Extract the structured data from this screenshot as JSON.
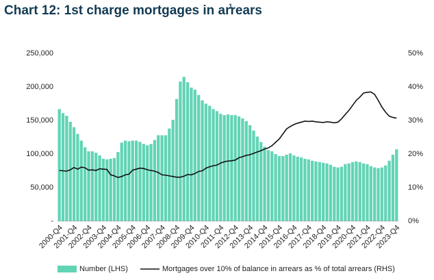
{
  "chart_data": {
    "type": "bar_line",
    "title": "Chart 12: 1st charge mortgages in arrears",
    "title_superscript": "1",
    "categories": [
      "2000-Q4",
      null,
      null,
      null,
      "2001-Q4",
      null,
      null,
      null,
      "2002-Q4",
      null,
      null,
      null,
      "2003-Q4",
      null,
      null,
      null,
      "2004-Q4",
      null,
      null,
      null,
      "2005-Q4",
      null,
      null,
      null,
      "2006-Q4",
      null,
      null,
      null,
      "2007-Q4",
      null,
      null,
      null,
      "2008-Q4",
      null,
      null,
      null,
      "2009-Q4",
      null,
      null,
      null,
      "2010-Q4",
      null,
      null,
      null,
      "2011-Q4",
      null,
      null,
      null,
      "2012-Q4",
      null,
      null,
      null,
      "2013-Q4",
      null,
      null,
      null,
      "2014-Q4",
      null,
      null,
      null,
      "2015-Q4",
      null,
      null,
      null,
      "2016-Q4",
      null,
      null,
      null,
      "2017-Q4",
      null,
      null,
      null,
      "2018-Q4",
      null,
      null,
      null,
      "2019-Q4",
      null,
      null,
      null,
      "2020-Q4",
      null,
      null,
      null,
      "2021-Q4",
      null,
      null,
      null,
      "2022-Q4",
      null,
      null,
      null,
      "2023-Q4"
    ],
    "series": [
      {
        "name": "Number (LHS)",
        "color": "#62d4b6",
        "kind": "bar",
        "axis": "y",
        "values": [
          167000,
          161000,
          157000,
          148000,
          140000,
          130000,
          120000,
          110000,
          104000,
          104000,
          102000,
          98000,
          93000,
          92000,
          93000,
          94000,
          103000,
          117000,
          120000,
          119000,
          120000,
          120000,
          118000,
          115000,
          113000,
          115000,
          121000,
          128000,
          128000,
          128000,
          138000,
          151000,
          182000,
          208000,
          215000,
          207000,
          199000,
          196000,
          188000,
          180000,
          175000,
          172000,
          167000,
          164000,
          160000,
          158000,
          159000,
          158000,
          158000,
          156000,
          153000,
          149000,
          143000,
          135000,
          126000,
          118000,
          111000,
          106000,
          104000,
          100000,
          97000,
          97000,
          99000,
          101000,
          98000,
          96000,
          95000,
          93000,
          92000,
          90000,
          89000,
          88000,
          87000,
          86000,
          84000,
          81000,
          80000,
          81000,
          85000,
          86000,
          88000,
          89000,
          88000,
          86000,
          85000,
          82000,
          80000,
          79000,
          80000,
          83000,
          90000,
          99000,
          107000
        ]
      },
      {
        "name": "Mortgages over 10% of balance in arrears as % of total arrears (RHS)",
        "color": "#111111",
        "kind": "line",
        "axis": "y2",
        "values": [
          15.1,
          15.0,
          14.9,
          15.3,
          16.0,
          15.5,
          16.1,
          15.9,
          15.2,
          15.3,
          15.1,
          15.6,
          15.5,
          15.4,
          13.8,
          13.5,
          13.0,
          13.3,
          13.8,
          14.0,
          15.2,
          15.5,
          15.8,
          15.7,
          15.3,
          15.1,
          14.9,
          14.5,
          13.8,
          13.7,
          13.5,
          13.3,
          13.1,
          13.1,
          13.4,
          13.9,
          13.8,
          14.2,
          14.8,
          15.0,
          15.8,
          16.2,
          16.5,
          16.7,
          17.3,
          17.7,
          17.9,
          18.0,
          18.2,
          18.9,
          19.2,
          19.6,
          19.8,
          20.2,
          20.6,
          21.0,
          21.5,
          21.8,
          22.5,
          23.5,
          24.5,
          26.0,
          27.5,
          28.2,
          28.8,
          29.2,
          29.5,
          29.8,
          29.7,
          29.8,
          29.6,
          29.5,
          29.4,
          29.6,
          29.5,
          29.3,
          29.5,
          30.5,
          31.8,
          33.0,
          34.5,
          36.0,
          37.0,
          38.2,
          38.4,
          38.5,
          37.8,
          36.0,
          34.0,
          32.5,
          31.3,
          30.9,
          30.7
        ]
      }
    ],
    "ylim": [
      0,
      250000
    ],
    "yticks": [
      {
        "value": 0,
        "label": "-"
      },
      {
        "value": 50000,
        "label": "50,000"
      },
      {
        "value": 100000,
        "label": "100,000"
      },
      {
        "value": 150000,
        "label": "150,000"
      },
      {
        "value": 200000,
        "label": "200,000"
      },
      {
        "value": 250000,
        "label": "250,000"
      }
    ],
    "y2lim": [
      0,
      50
    ],
    "y2ticks": [
      {
        "value": 0,
        "label": "0%"
      },
      {
        "value": 10,
        "label": "10%"
      },
      {
        "value": 20,
        "label": "20%"
      },
      {
        "value": 30,
        "label": "30%"
      },
      {
        "value": 40,
        "label": "40%"
      },
      {
        "value": 50,
        "label": "50%"
      }
    ],
    "legend": "bottom"
  }
}
